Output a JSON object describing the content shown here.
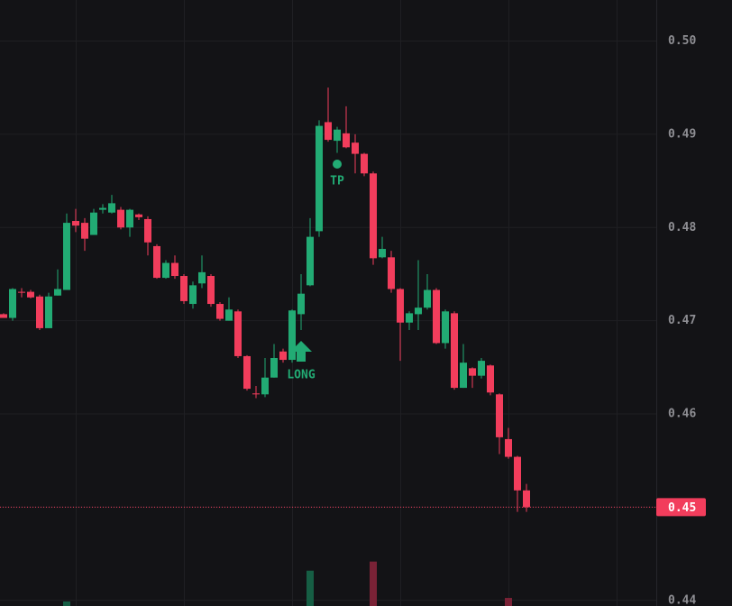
{
  "chart_data": {
    "type": "candlestick",
    "open": [
      0.4707,
      0.4703,
      0.4731,
      0.4731,
      0.4726,
      0.4692,
      0.4727,
      0.4733,
      0.4807,
      0.4805,
      0.4792,
      0.4819,
      0.4816,
      0.4819,
      0.48,
      0.4814,
      0.4809,
      0.478,
      0.4746,
      0.4762,
      0.4748,
      0.4718,
      0.474,
      0.4748,
      0.4718,
      0.47,
      0.471,
      0.4662,
      0.4622,
      0.4621,
      0.4639,
      0.4667,
      0.4658,
      0.4707,
      0.4738,
      0.4796,
      0.4913,
      0.4893,
      0.4901,
      0.4891,
      0.4879,
      0.4858,
      0.4768,
      0.4768,
      0.4734,
      0.4698,
      0.4707,
      0.4714,
      0.4733,
      0.4676,
      0.4708,
      0.4628,
      0.4649,
      0.4641,
      0.4652,
      0.4621,
      0.4573,
      0.4554,
      0.4518
    ],
    "high": [
      0.4708,
      0.4735,
      0.4735,
      0.4733,
      0.4728,
      0.473,
      0.4755,
      0.4815,
      0.482,
      0.481,
      0.482,
      0.4825,
      0.4835,
      0.4822,
      0.482,
      0.4815,
      0.4812,
      0.4782,
      0.4765,
      0.477,
      0.475,
      0.4742,
      0.477,
      0.475,
      0.472,
      0.4725,
      0.4712,
      0.4663,
      0.463,
      0.466,
      0.4675,
      0.467,
      0.4712,
      0.475,
      0.481,
      0.4915,
      0.495,
      0.4908,
      0.493,
      0.49,
      0.488,
      0.486,
      0.479,
      0.4775,
      0.4735,
      0.471,
      0.4765,
      0.475,
      0.4735,
      0.4712,
      0.471,
      0.4675,
      0.465,
      0.466,
      0.4653,
      0.4622,
      0.4585,
      0.4555,
      0.4525
    ],
    "low": [
      0.4703,
      0.47,
      0.4725,
      0.4724,
      0.469,
      0.4692,
      0.4727,
      0.4733,
      0.4795,
      0.4775,
      0.4792,
      0.4815,
      0.4815,
      0.4798,
      0.479,
      0.4808,
      0.477,
      0.4745,
      0.4745,
      0.4745,
      0.4718,
      0.4713,
      0.4735,
      0.4715,
      0.47,
      0.47,
      0.466,
      0.4625,
      0.4617,
      0.4618,
      0.4639,
      0.4655,
      0.4655,
      0.469,
      0.4737,
      0.479,
      0.4892,
      0.488,
      0.4885,
      0.4858,
      0.4855,
      0.476,
      0.4767,
      0.473,
      0.4657,
      0.469,
      0.469,
      0.4712,
      0.4675,
      0.467,
      0.4626,
      0.4628,
      0.4628,
      0.4638,
      0.462,
      0.4557,
      0.4552,
      0.4495,
      0.4495
    ],
    "close": [
      0.4703,
      0.4734,
      0.473,
      0.4725,
      0.4692,
      0.4726,
      0.4734,
      0.4805,
      0.4802,
      0.4788,
      0.4816,
      0.4821,
      0.4826,
      0.48,
      0.4819,
      0.4811,
      0.4784,
      0.4746,
      0.4762,
      0.4748,
      0.4721,
      0.4738,
      0.4752,
      0.4718,
      0.4702,
      0.4712,
      0.4662,
      0.4627,
      0.4621,
      0.4639,
      0.466,
      0.4658,
      0.4711,
      0.4729,
      0.479,
      0.4909,
      0.4894,
      0.4905,
      0.4886,
      0.4879,
      0.4858,
      0.4767,
      0.4777,
      0.4734,
      0.4698,
      0.4708,
      0.4714,
      0.4733,
      0.4676,
      0.471,
      0.4628,
      0.4655,
      0.4641,
      0.4657,
      0.4623,
      0.4575,
      0.4554,
      0.4518,
      0.45
    ],
    "volume": [
      null,
      null,
      null,
      null,
      null,
      null,
      null,
      4.5,
      null,
      null,
      null,
      null,
      null,
      null,
      null,
      null,
      null,
      null,
      null,
      null,
      null,
      null,
      null,
      null,
      null,
      null,
      null,
      null,
      null,
      null,
      null,
      null,
      null,
      null,
      35,
      null,
      null,
      null,
      null,
      null,
      null,
      44,
      null,
      null,
      null,
      null,
      null,
      null,
      null,
      null,
      null,
      null,
      null,
      null,
      null,
      null,
      8,
      null,
      null
    ],
    "vlim": [
      0,
      100
    ],
    "up_color": "#22ab74",
    "down_color": "#f23d5c",
    "volume_up_color": "#165e44",
    "volume_down_color": "#7a2236",
    "ylim": [
      0.4394,
      0.5044
    ],
    "yticks": [
      {
        "value": 0.5,
        "label": "0.50"
      },
      0.49,
      0.48,
      0.47,
      0.46,
      0.45,
      0.44
    ],
    "grid": true,
    "last_price": 0.45,
    "annotations": {
      "long": "LONG",
      "take_profit": "TP"
    }
  }
}
